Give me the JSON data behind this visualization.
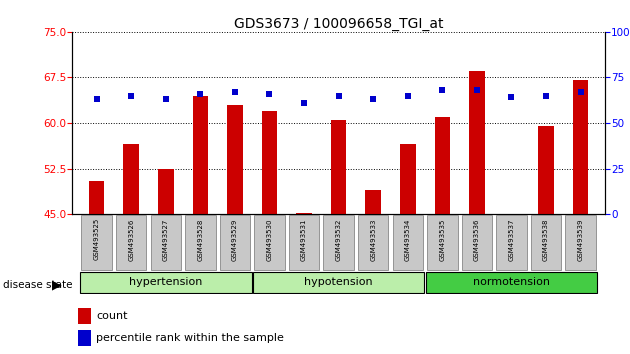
{
  "title": "GDS3673 / 100096658_TGI_at",
  "samples": [
    "GSM493525",
    "GSM493526",
    "GSM493527",
    "GSM493528",
    "GSM493529",
    "GSM493530",
    "GSM493531",
    "GSM493532",
    "GSM493533",
    "GSM493534",
    "GSM493535",
    "GSM493536",
    "GSM493537",
    "GSM493538",
    "GSM493539"
  ],
  "counts": [
    50.5,
    56.5,
    52.5,
    64.5,
    63.0,
    62.0,
    45.2,
    60.5,
    49.0,
    56.5,
    61.0,
    68.5,
    45.1,
    59.5,
    67.0
  ],
  "percentiles_right": [
    63,
    65,
    63,
    66,
    67,
    66,
    61,
    65,
    63,
    65,
    68,
    68,
    64,
    65,
    67
  ],
  "groups_info": [
    {
      "name": "hypertension",
      "start": 0,
      "end": 4,
      "color": "#BBEEAA"
    },
    {
      "name": "hypotension",
      "start": 5,
      "end": 9,
      "color": "#BBEEAA"
    },
    {
      "name": "normotension",
      "start": 10,
      "end": 14,
      "color": "#44CC44"
    }
  ],
  "ylim_left": [
    45,
    75
  ],
  "ylim_right": [
    0,
    100
  ],
  "yticks_left": [
    45,
    52.5,
    60,
    67.5,
    75
  ],
  "yticks_right": [
    0,
    25,
    50,
    75,
    100
  ],
  "bar_color": "#CC0000",
  "dot_color": "#0000CC",
  "bar_bottom": 45,
  "tick_label_bg": "#C8C8C8"
}
